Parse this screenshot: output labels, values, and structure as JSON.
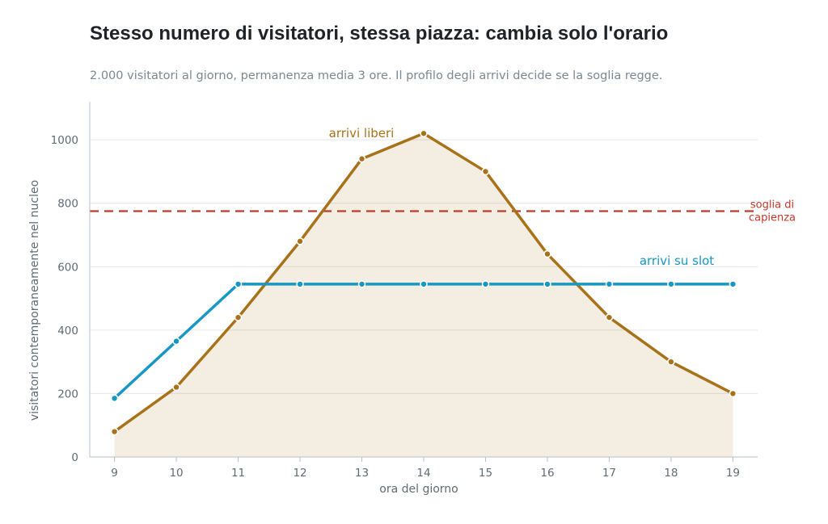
{
  "chart_data": {
    "type": "line",
    "title": "Stesso numero di visitatori, stessa piazza: cambia solo l'orario",
    "subtitle": "2.000 visitatori al giorno, permanenza media 3 ore. Il profilo degli arrivi decide se la soglia regge.",
    "xlabel": "ora del giorno",
    "ylabel": "visitatori contemporaneamente nel nucleo",
    "x": [
      9,
      10,
      11,
      12,
      13,
      14,
      15,
      16,
      17,
      18,
      19
    ],
    "xlim": [
      8.6,
      19.4
    ],
    "ylim": [
      0,
      1120
    ],
    "yticks": [
      0,
      200,
      400,
      600,
      800,
      1000
    ],
    "grid": true,
    "series": [
      {
        "name": "arrivi liberi",
        "color": "#a8721a",
        "area": true,
        "values": [
          80,
          220,
          440,
          680,
          940,
          1020,
          900,
          640,
          440,
          300,
          200
        ]
      },
      {
        "name": "arrivi su slot",
        "color": "#1797c4",
        "area": false,
        "values": [
          185,
          365,
          545,
          545,
          545,
          545,
          545,
          545,
          545,
          545,
          545
        ]
      }
    ],
    "threshold": {
      "name": "soglia di capienza",
      "name_lines": [
        "soglia di",
        "capienza"
      ],
      "value": 775,
      "color": "#c0392b"
    }
  }
}
